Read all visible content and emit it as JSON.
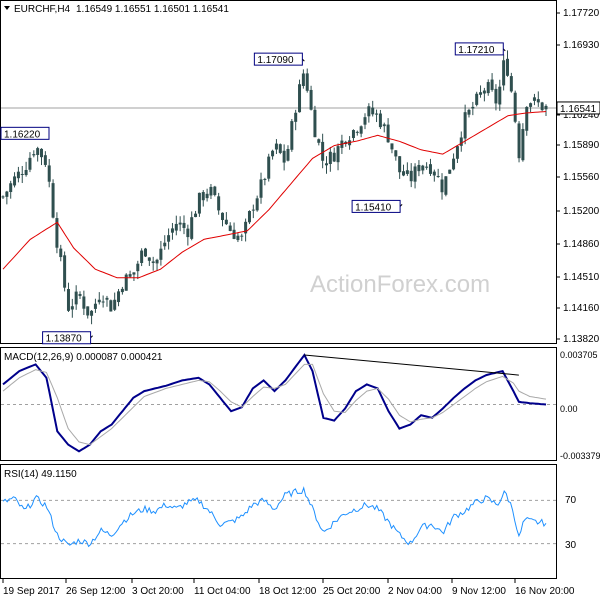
{
  "header": {
    "symbol": "EURCHF,H4",
    "ohlc": "1.16549 1.16551 1.16501 1.16541"
  },
  "watermark": "ActionForex.com",
  "colors": {
    "candle": "#2f4f4f",
    "ma": "#e00000",
    "macd_line": "#00008b",
    "macd_signal": "#a9a9a9",
    "rsi": "#1e90ff",
    "trendline": "#000000",
    "grid": "#a0a0a0",
    "label_border": "#000080"
  },
  "chart_data": [
    {
      "type": "candlestick",
      "panel": "price",
      "ylim": [
        1.1382,
        1.1776
      ],
      "yticks": [
        "1.17720",
        "1.16930",
        "1.16240",
        "1.15890",
        "1.15560",
        "1.15200",
        "1.14860",
        "1.14510",
        "1.14160",
        "1.13820"
      ],
      "current_price": "1.16541",
      "horizontal_line": 1.16541,
      "xticks": [
        "19 Sep 2017",
        "26 Sep 12:00",
        "3 Oct 20:00",
        "11 Oct 04:00",
        "18 Oct 12:00",
        "25 Oct 20:00",
        "2 Nov 04:00",
        "9 Nov 12:00",
        "16 Nov 20:00"
      ],
      "annotations": [
        {
          "text": "1.16220",
          "value": 1.1622,
          "bar": 0.03
        },
        {
          "text": "1.13870",
          "value": 1.1387,
          "bar": 0.165
        },
        {
          "text": "1.17090",
          "value": 1.1709,
          "bar": 0.555
        },
        {
          "text": "1.15410",
          "value": 1.1541,
          "bar": 0.735
        },
        {
          "text": "1.17210",
          "value": 1.1721,
          "bar": 0.925
        }
      ],
      "close_anchors": [
        [
          0,
          1.155
        ],
        [
          0.02,
          1.157
        ],
        [
          0.04,
          1.1585
        ],
        [
          0.06,
          1.161
        ],
        [
          0.08,
          1.159
        ],
        [
          0.1,
          1.1495
        ],
        [
          0.12,
          1.142
        ],
        [
          0.14,
          1.1435
        ],
        [
          0.16,
          1.141
        ],
        [
          0.18,
          1.144
        ],
        [
          0.2,
          1.142
        ],
        [
          0.22,
          1.145
        ],
        [
          0.24,
          1.146
        ],
        [
          0.26,
          1.149
        ],
        [
          0.28,
          1.147
        ],
        [
          0.3,
          1.15
        ],
        [
          0.32,
          1.152
        ],
        [
          0.34,
          1.151
        ],
        [
          0.36,
          1.1545
        ],
        [
          0.38,
          1.156
        ],
        [
          0.4,
          1.153
        ],
        [
          0.42,
          1.151
        ],
        [
          0.44,
          1.15
        ],
        [
          0.46,
          1.154
        ],
        [
          0.48,
          1.157
        ],
        [
          0.5,
          1.161
        ],
        [
          0.52,
          1.159
        ],
        [
          0.54,
          1.166
        ],
        [
          0.555,
          1.17
        ],
        [
          0.57,
          1.164
        ],
        [
          0.59,
          1.159
        ],
        [
          0.61,
          1.16
        ],
        [
          0.63,
          1.162
        ],
        [
          0.65,
          1.163
        ],
        [
          0.67,
          1.165
        ],
        [
          0.69,
          1.1645
        ],
        [
          0.71,
          1.162
        ],
        [
          0.73,
          1.158
        ],
        [
          0.75,
          1.157
        ],
        [
          0.77,
          1.159
        ],
        [
          0.79,
          1.1585
        ],
        [
          0.81,
          1.156
        ],
        [
          0.83,
          1.16
        ],
        [
          0.85,
          1.164
        ],
        [
          0.87,
          1.166
        ],
        [
          0.89,
          1.168
        ],
        [
          0.91,
          1.166
        ],
        [
          0.925,
          1.1715
        ],
        [
          0.94,
          1.166
        ],
        [
          0.95,
          1.16
        ],
        [
          0.965,
          1.1665
        ],
        [
          0.98,
          1.166
        ],
        [
          1.0,
          1.1654
        ]
      ],
      "ma_anchors": [
        [
          0,
          1.1465
        ],
        [
          0.05,
          1.15
        ],
        [
          0.1,
          1.152
        ],
        [
          0.13,
          1.149
        ],
        [
          0.17,
          1.1465
        ],
        [
          0.21,
          1.1455
        ],
        [
          0.25,
          1.1455
        ],
        [
          0.29,
          1.1465
        ],
        [
          0.33,
          1.1485
        ],
        [
          0.37,
          1.15
        ],
        [
          0.41,
          1.1505
        ],
        [
          0.45,
          1.151
        ],
        [
          0.49,
          1.1535
        ],
        [
          0.53,
          1.1565
        ],
        [
          0.57,
          1.1595
        ],
        [
          0.61,
          1.161
        ],
        [
          0.65,
          1.1615
        ],
        [
          0.69,
          1.1622
        ],
        [
          0.73,
          1.1615
        ],
        [
          0.77,
          1.1605
        ],
        [
          0.81,
          1.16
        ],
        [
          0.85,
          1.1615
        ],
        [
          0.89,
          1.163
        ],
        [
          0.93,
          1.1645
        ],
        [
          0.96,
          1.1648
        ],
        [
          1.0,
          1.165
        ]
      ]
    },
    {
      "type": "line",
      "panel": "macd",
      "title": "MACD(12,26,9) 0.000087 0.000421",
      "ylim": [
        -0.004,
        0.004
      ],
      "yticks": [
        "0.003705",
        "0.00",
        "-0.003379"
      ],
      "series": [
        {
          "role": "macd",
          "anchors": [
            [
              0,
              0.0015
            ],
            [
              0.03,
              0.0025
            ],
            [
              0.06,
              0.003
            ],
            [
              0.08,
              0.002
            ],
            [
              0.1,
              -0.002
            ],
            [
              0.12,
              -0.003
            ],
            [
              0.14,
              -0.0035
            ],
            [
              0.16,
              -0.003
            ],
            [
              0.18,
              -0.002
            ],
            [
              0.2,
              -0.0015
            ],
            [
              0.22,
              -0.0005
            ],
            [
              0.24,
              0.0005
            ],
            [
              0.26,
              0.001
            ],
            [
              0.28,
              0.0012
            ],
            [
              0.3,
              0.0014
            ],
            [
              0.33,
              0.0018
            ],
            [
              0.36,
              0.002
            ],
            [
              0.38,
              0.0015
            ],
            [
              0.4,
              0.0005
            ],
            [
              0.42,
              -0.0005
            ],
            [
              0.44,
              -0.0002
            ],
            [
              0.46,
              0.0012
            ],
            [
              0.48,
              0.0018
            ],
            [
              0.5,
              0.001
            ],
            [
              0.52,
              0.0018
            ],
            [
              0.555,
              0.0037
            ],
            [
              0.57,
              0.0025
            ],
            [
              0.59,
              -0.001
            ],
            [
              0.61,
              -0.0012
            ],
            [
              0.63,
              -0.0003
            ],
            [
              0.65,
              0.001
            ],
            [
              0.67,
              0.0015
            ],
            [
              0.69,
              0.0012
            ],
            [
              0.71,
              -0.0005
            ],
            [
              0.73,
              -0.0018
            ],
            [
              0.75,
              -0.0015
            ],
            [
              0.77,
              -0.0008
            ],
            [
              0.79,
              -0.001
            ],
            [
              0.81,
              -0.0003
            ],
            [
              0.83,
              0.0005
            ],
            [
              0.85,
              0.0012
            ],
            [
              0.87,
              0.0018
            ],
            [
              0.89,
              0.0022
            ],
            [
              0.92,
              0.0025
            ],
            [
              0.94,
              0.001
            ],
            [
              0.95,
              0.0002
            ],
            [
              0.97,
              0.0001
            ],
            [
              1.0,
              0.0
            ]
          ]
        },
        {
          "role": "signal",
          "anchors": [
            [
              0,
              0.001
            ],
            [
              0.03,
              0.002
            ],
            [
              0.06,
              0.0026
            ],
            [
              0.08,
              0.0024
            ],
            [
              0.1,
              0.0005
            ],
            [
              0.12,
              -0.0018
            ],
            [
              0.14,
              -0.0028
            ],
            [
              0.16,
              -0.003
            ],
            [
              0.18,
              -0.0024
            ],
            [
              0.2,
              -0.0018
            ],
            [
              0.22,
              -0.001
            ],
            [
              0.24,
              -0.0002
            ],
            [
              0.26,
              0.0006
            ],
            [
              0.28,
              0.0009
            ],
            [
              0.3,
              0.0012
            ],
            [
              0.33,
              0.0015
            ],
            [
              0.36,
              0.0018
            ],
            [
              0.38,
              0.0017
            ],
            [
              0.4,
              0.001
            ],
            [
              0.42,
              0.0002
            ],
            [
              0.44,
              -0.0002
            ],
            [
              0.46,
              0.0006
            ],
            [
              0.48,
              0.0013
            ],
            [
              0.5,
              0.0012
            ],
            [
              0.52,
              0.0015
            ],
            [
              0.555,
              0.003
            ],
            [
              0.57,
              0.003
            ],
            [
              0.59,
              0.0008
            ],
            [
              0.61,
              -0.0005
            ],
            [
              0.63,
              -0.0006
            ],
            [
              0.65,
              0.0003
            ],
            [
              0.67,
              0.001
            ],
            [
              0.69,
              0.0012
            ],
            [
              0.71,
              0.0004
            ],
            [
              0.73,
              -0.0008
            ],
            [
              0.75,
              -0.0013
            ],
            [
              0.77,
              -0.0011
            ],
            [
              0.79,
              -0.001
            ],
            [
              0.81,
              -0.0006
            ],
            [
              0.83,
              0.0
            ],
            [
              0.85,
              0.0006
            ],
            [
              0.87,
              0.0012
            ],
            [
              0.89,
              0.0017
            ],
            [
              0.92,
              0.0021
            ],
            [
              0.94,
              0.0016
            ],
            [
              0.95,
              0.001
            ],
            [
              0.97,
              0.0006
            ],
            [
              1.0,
              0.0004
            ]
          ]
        }
      ],
      "trendline": [
        [
          0.555,
          0.0037
        ],
        [
          0.95,
          0.0022
        ]
      ]
    },
    {
      "type": "line",
      "panel": "rsi",
      "title": "RSI(14) 49.1150",
      "ylim": [
        0,
        100
      ],
      "yticks": [
        "70",
        "30"
      ],
      "levels": [
        70,
        30
      ],
      "anchors": [
        [
          0,
          68
        ],
        [
          0.02,
          72
        ],
        [
          0.04,
          60
        ],
        [
          0.06,
          72
        ],
        [
          0.08,
          65
        ],
        [
          0.1,
          38
        ],
        [
          0.12,
          28
        ],
        [
          0.14,
          33
        ],
        [
          0.16,
          30
        ],
        [
          0.18,
          42
        ],
        [
          0.2,
          38
        ],
        [
          0.22,
          50
        ],
        [
          0.24,
          58
        ],
        [
          0.26,
          62
        ],
        [
          0.28,
          60
        ],
        [
          0.3,
          66
        ],
        [
          0.32,
          62
        ],
        [
          0.34,
          68
        ],
        [
          0.36,
          70
        ],
        [
          0.38,
          60
        ],
        [
          0.4,
          48
        ],
        [
          0.42,
          50
        ],
        [
          0.44,
          55
        ],
        [
          0.46,
          66
        ],
        [
          0.48,
          70
        ],
        [
          0.5,
          62
        ],
        [
          0.52,
          75
        ],
        [
          0.54,
          78
        ],
        [
          0.555,
          80
        ],
        [
          0.57,
          62
        ],
        [
          0.59,
          40
        ],
        [
          0.61,
          50
        ],
        [
          0.63,
          58
        ],
        [
          0.65,
          62
        ],
        [
          0.67,
          66
        ],
        [
          0.69,
          62
        ],
        [
          0.71,
          50
        ],
        [
          0.73,
          38
        ],
        [
          0.75,
          30
        ],
        [
          0.77,
          45
        ],
        [
          0.79,
          48
        ],
        [
          0.81,
          40
        ],
        [
          0.83,
          55
        ],
        [
          0.85,
          60
        ],
        [
          0.87,
          68
        ],
        [
          0.89,
          72
        ],
        [
          0.91,
          66
        ],
        [
          0.925,
          78
        ],
        [
          0.94,
          60
        ],
        [
          0.95,
          35
        ],
        [
          0.96,
          52
        ],
        [
          0.98,
          50
        ],
        [
          1.0,
          49
        ]
      ]
    }
  ]
}
